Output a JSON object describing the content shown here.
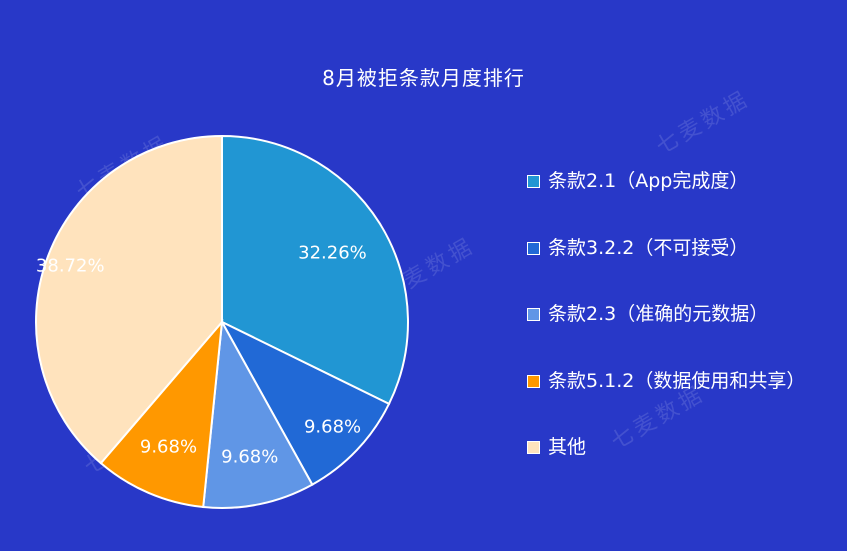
{
  "chart_data": {
    "type": "pie",
    "title": "8月被拒条款月度排行",
    "legend_position": "right",
    "slices": [
      {
        "name": "条款2.1（App完成度）",
        "value": 32.26,
        "label": "32.26%",
        "color": "#2196d3"
      },
      {
        "name": "条款3.2.2（不可接受）",
        "value": 9.68,
        "label": "9.68%",
        "color": "#2169d6"
      },
      {
        "name": "条款2.3（准确的元数据）",
        "value": 9.68,
        "label": "9.68%",
        "color": "#6096e6"
      },
      {
        "name": "条款5.1.2（数据使用和共享）",
        "value": 9.68,
        "label": "9.68%",
        "color": "#ff9800"
      },
      {
        "name": "其他",
        "value": 38.72,
        "label": "38.72%",
        "color": "#ffe3bd"
      }
    ]
  },
  "watermark": "七麦数据"
}
